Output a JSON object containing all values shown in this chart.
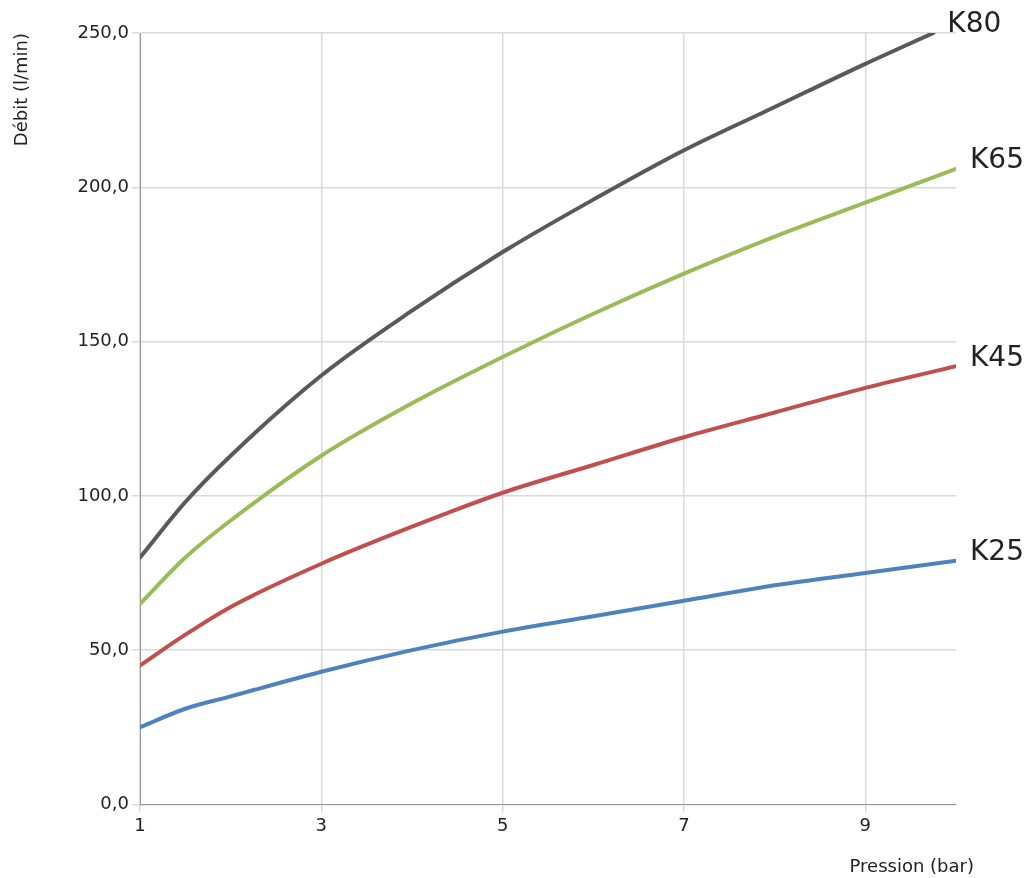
{
  "chart_data": {
    "type": "line",
    "xlabel": "Pression (bar)",
    "ylabel": "Débit (l/min)",
    "xlim": [
      1,
      10
    ],
    "xticks": [
      1,
      3,
      5,
      7,
      9
    ],
    "ylim": [
      0,
      250
    ],
    "yticks": [
      {
        "value": 0,
        "label": "0,0"
      },
      {
        "value": 50,
        "label": "50,0"
      },
      {
        "value": 100,
        "label": "100,0"
      },
      {
        "value": 150,
        "label": "150,0"
      },
      {
        "value": 200,
        "label": "200,0"
      },
      {
        "value": 250,
        "label": "250,0"
      }
    ],
    "grid": true,
    "legend": false,
    "series": [
      {
        "name": "K80",
        "color": "#595959",
        "x": [
          1,
          1.5,
          2,
          3,
          4,
          5,
          6,
          7,
          8,
          9,
          9.75
        ],
        "values": [
          80,
          98,
          113,
          139,
          160,
          179,
          196,
          212,
          226,
          240,
          250
        ]
      },
      {
        "name": "K65",
        "color": "#9bbb59",
        "x": [
          1,
          1.5,
          2,
          3,
          4,
          5,
          6,
          7,
          8,
          9,
          10
        ],
        "values": [
          65,
          80,
          92,
          113,
          130,
          145,
          159,
          172,
          184,
          195,
          206
        ]
      },
      {
        "name": "K45",
        "color": "#c0504d",
        "x": [
          1,
          1.5,
          2,
          3,
          4,
          5,
          6,
          7,
          8,
          9,
          10
        ],
        "values": [
          45,
          55,
          64,
          78,
          90,
          101,
          110,
          119,
          127,
          135,
          142
        ]
      },
      {
        "name": "K25",
        "color": "#4f81bd",
        "x": [
          1,
          1.5,
          2,
          3,
          4,
          5,
          6,
          7,
          8,
          9,
          10
        ],
        "values": [
          25,
          31,
          35,
          43,
          50,
          56,
          61,
          66,
          71,
          75,
          79
        ]
      }
    ]
  }
}
